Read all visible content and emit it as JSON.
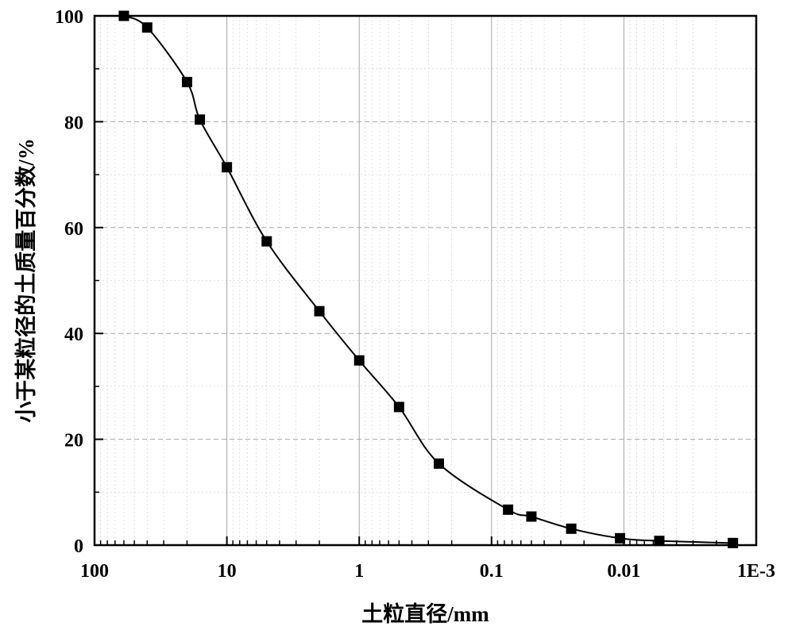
{
  "chart_data": {
    "type": "line",
    "xlabel": "土粒直径/mm",
    "ylabel": "小于某粒径的土质量百分数/%",
    "x_scale": "log",
    "x_reversed": true,
    "xlim": [
      100,
      0.001
    ],
    "ylim": [
      0,
      100
    ],
    "x_ticks": [
      100,
      10,
      1,
      0.1,
      0.01,
      0.001
    ],
    "x_tick_labels": [
      "100",
      "10",
      "1",
      "0.1",
      "0.01",
      "1E-3"
    ],
    "y_ticks": [
      0,
      20,
      40,
      60,
      80,
      100
    ],
    "y_tick_labels": [
      "0",
      "20",
      "40",
      "60",
      "80",
      "100"
    ],
    "grid": true,
    "legend": "none",
    "series": [
      {
        "marker": "square",
        "line": "smooth",
        "color": "#000000",
        "x": [
          60,
          40,
          20,
          16,
          10,
          5,
          2,
          1,
          0.5,
          0.25,
          0.075,
          0.05,
          0.025,
          0.0107,
          0.0054,
          0.0015
        ],
        "y": [
          100,
          97.8,
          87.5,
          80.4,
          71.4,
          57.4,
          44.2,
          34.9,
          26.1,
          15.4,
          6.7,
          5.4,
          3.1,
          1.3,
          0.8,
          0.4
        ]
      }
    ]
  }
}
